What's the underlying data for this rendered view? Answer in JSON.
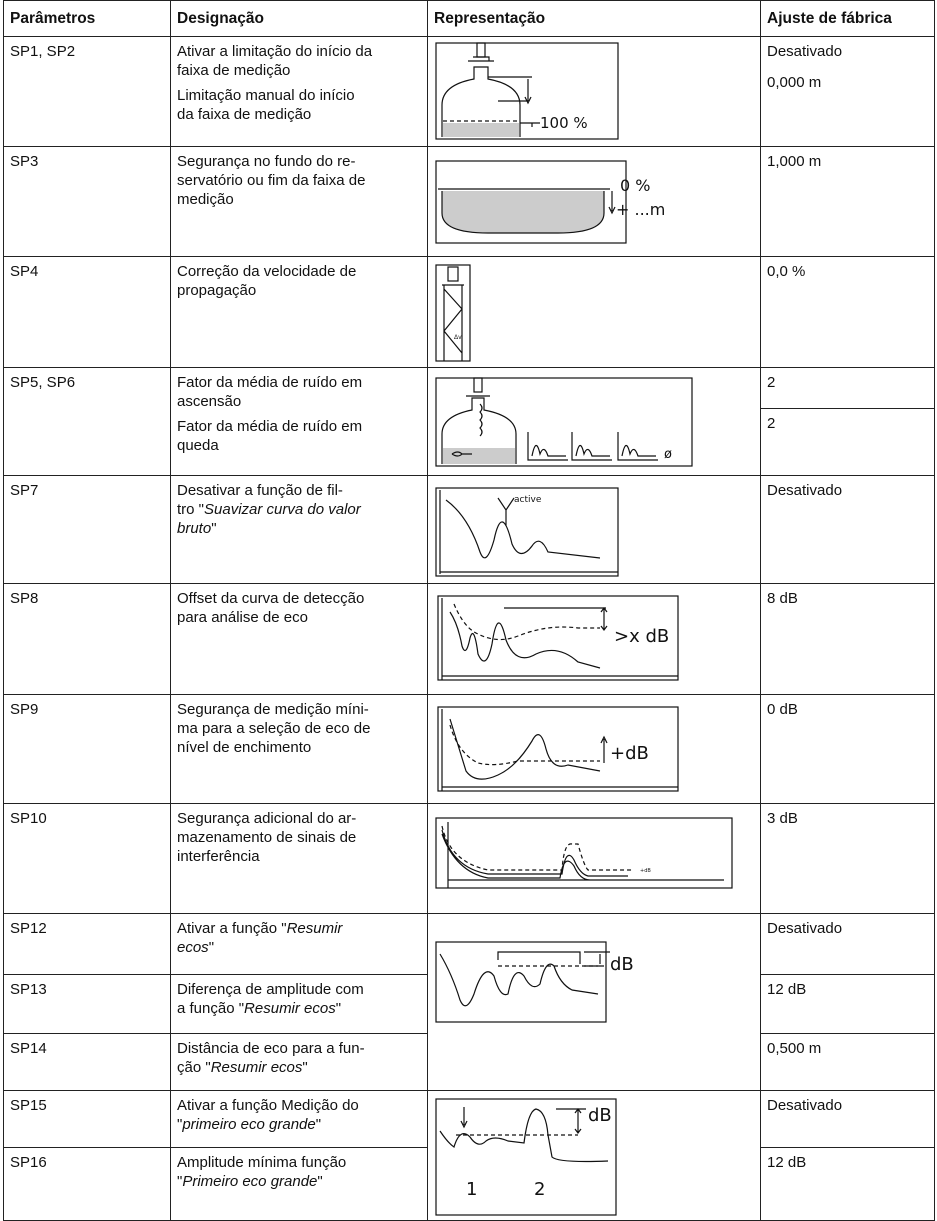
{
  "header": [
    "Parâmetros",
    "Designação",
    "Representação",
    "Ajuste de fábrica"
  ],
  "rows": [
    {
      "parameter": "SP1, SP2",
      "designation": [
        [
          "Ativar a limitação do início da",
          "faixa de medição"
        ],
        [
          "Limitação manual do início",
          "da faixa de medição"
        ]
      ],
      "figure_labels": [
        "100 %"
      ],
      "default": [
        [
          "Desativado",
          "0,000 m"
        ]
      ]
    },
    {
      "parameter": "SP3",
      "designation": [
        [
          "Segurança no fundo do re-",
          "servatório ou fim da faixa de",
          "medição"
        ]
      ],
      "figure_labels": [
        "0 %",
        "+ ...m"
      ],
      "default": [
        [
          "1,000 m"
        ]
      ]
    },
    {
      "parameter": "SP4",
      "designation": [
        [
          "Correção da velocidade de",
          "propagação"
        ]
      ],
      "figure_labels": [
        "Δv"
      ],
      "default": [
        [
          "0,0 %"
        ]
      ]
    },
    {
      "parameter": "SP5, SP6",
      "designation": [
        [
          "Fator da média de ruído em",
          "ascensão"
        ],
        [
          "Fator da média de ruído em",
          "queda"
        ]
      ],
      "figure_labels": [
        "ø"
      ],
      "default": [
        [
          "2"
        ],
        [
          "2"
        ]
      ]
    },
    {
      "parameter": "SP7",
      "designation": [
        [
          "Desativar a função de fil-",
          [
            "tro \"",
            {
              "italic": "Suavizar curva do valor"
            }
          ],
          [
            {
              "italic": "bruto"
            },
            "\""
          ]
        ]
      ],
      "figure_labels": [
        "active"
      ],
      "default": [
        [
          "Desativado"
        ]
      ]
    },
    {
      "parameter": "SP8",
      "designation": [
        [
          "Offset da curva de detecção",
          "para análise de eco"
        ]
      ],
      "figure_labels": [
        ">x dB"
      ],
      "default": [
        [
          "8 dB"
        ]
      ]
    },
    {
      "parameter": "SP9",
      "designation": [
        [
          "Segurança de medição míni-",
          "ma para a seleção de eco de",
          "nível de enchimento"
        ]
      ],
      "figure_labels": [
        "+dB"
      ],
      "default": [
        [
          "0 dB"
        ]
      ]
    },
    {
      "parameter": "SP10",
      "designation": [
        [
          "Segurança adicional do ar-",
          "mazenamento de sinais de",
          "interferência"
        ]
      ],
      "figure_labels": [
        "+dB"
      ],
      "default": [
        [
          "3 dB"
        ]
      ]
    },
    {
      "parameter": "SP12",
      "designation": [
        [
          [
            "Ativar a função \"",
            {
              "italic": "Resumir"
            }
          ],
          [
            {
              "italic": "ecos"
            },
            "\""
          ]
        ]
      ],
      "figure_labels": [
        "dB"
      ],
      "default": [
        [
          "Desativado"
        ]
      ]
    },
    {
      "parameter": "SP13",
      "designation": [
        [
          "Diferença de amplitude com",
          [
            "a função \"",
            {
              "italic": "Resumir ecos"
            },
            "\""
          ]
        ]
      ],
      "default": [
        [
          "12 dB"
        ]
      ]
    },
    {
      "parameter": "SP14",
      "designation": [
        [
          "Distância de eco para a fun-",
          [
            "ção \"",
            {
              "italic": "Resumir ecos"
            },
            "\""
          ]
        ]
      ],
      "default": [
        [
          "0,500 m"
        ]
      ]
    },
    {
      "parameter": "SP15",
      "designation": [
        [
          "Ativar a função Medição do",
          [
            "\"",
            {
              "italic": "primeiro eco grande"
            },
            "\""
          ]
        ]
      ],
      "figure_labels": [
        "dB",
        "1",
        "2"
      ],
      "default": [
        [
          "Desativado"
        ]
      ]
    },
    {
      "parameter": "SP16",
      "designation": [
        [
          "Amplitude mínima função",
          [
            "\"",
            {
              "italic": "Primeiro eco grande"
            },
            "\""
          ]
        ]
      ],
      "default": [
        [
          "12 dB"
        ]
      ]
    }
  ]
}
